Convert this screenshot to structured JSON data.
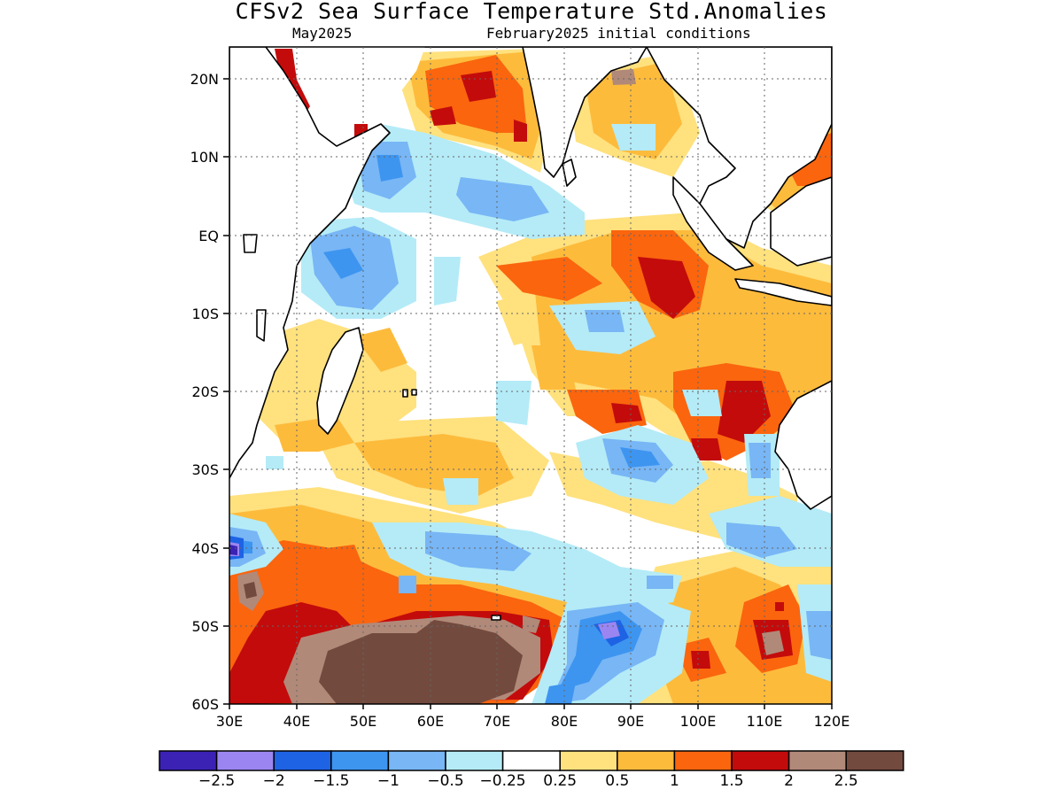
{
  "title": "CFSv2 Sea Surface Temperature Std.Anomalies",
  "subtitle_left": "May2025",
  "subtitle_right": "February2025 initial conditions",
  "map": {
    "lon_range": [
      30,
      120
    ],
    "lat_range": [
      -60,
      24
    ],
    "x_ticks": [
      "30E",
      "40E",
      "50E",
      "60E",
      "70E",
      "80E",
      "90E",
      "100E",
      "110E",
      "120E"
    ],
    "y_ticks": [
      "20N",
      "10N",
      "EQ",
      "10S",
      "20S",
      "30S",
      "40S",
      "50S",
      "60S"
    ],
    "grid": "dotted"
  },
  "colorbar": {
    "colors": [
      "#3b22b4",
      "#9b86f1",
      "#1e63e4",
      "#3d95f0",
      "#78b6f5",
      "#b4ebf7",
      "#ffffff",
      "#ffe17e",
      "#fdbb3c",
      "#fa650e",
      "#c30b0b",
      "#b18979",
      "#734a3e"
    ],
    "labels": [
      "−2.5",
      "−2",
      "−1.5",
      "−1",
      "−0.5",
      "−0.25",
      "0.25",
      "0.5",
      "1",
      "1.5",
      "2",
      "2.5"
    ]
  }
}
